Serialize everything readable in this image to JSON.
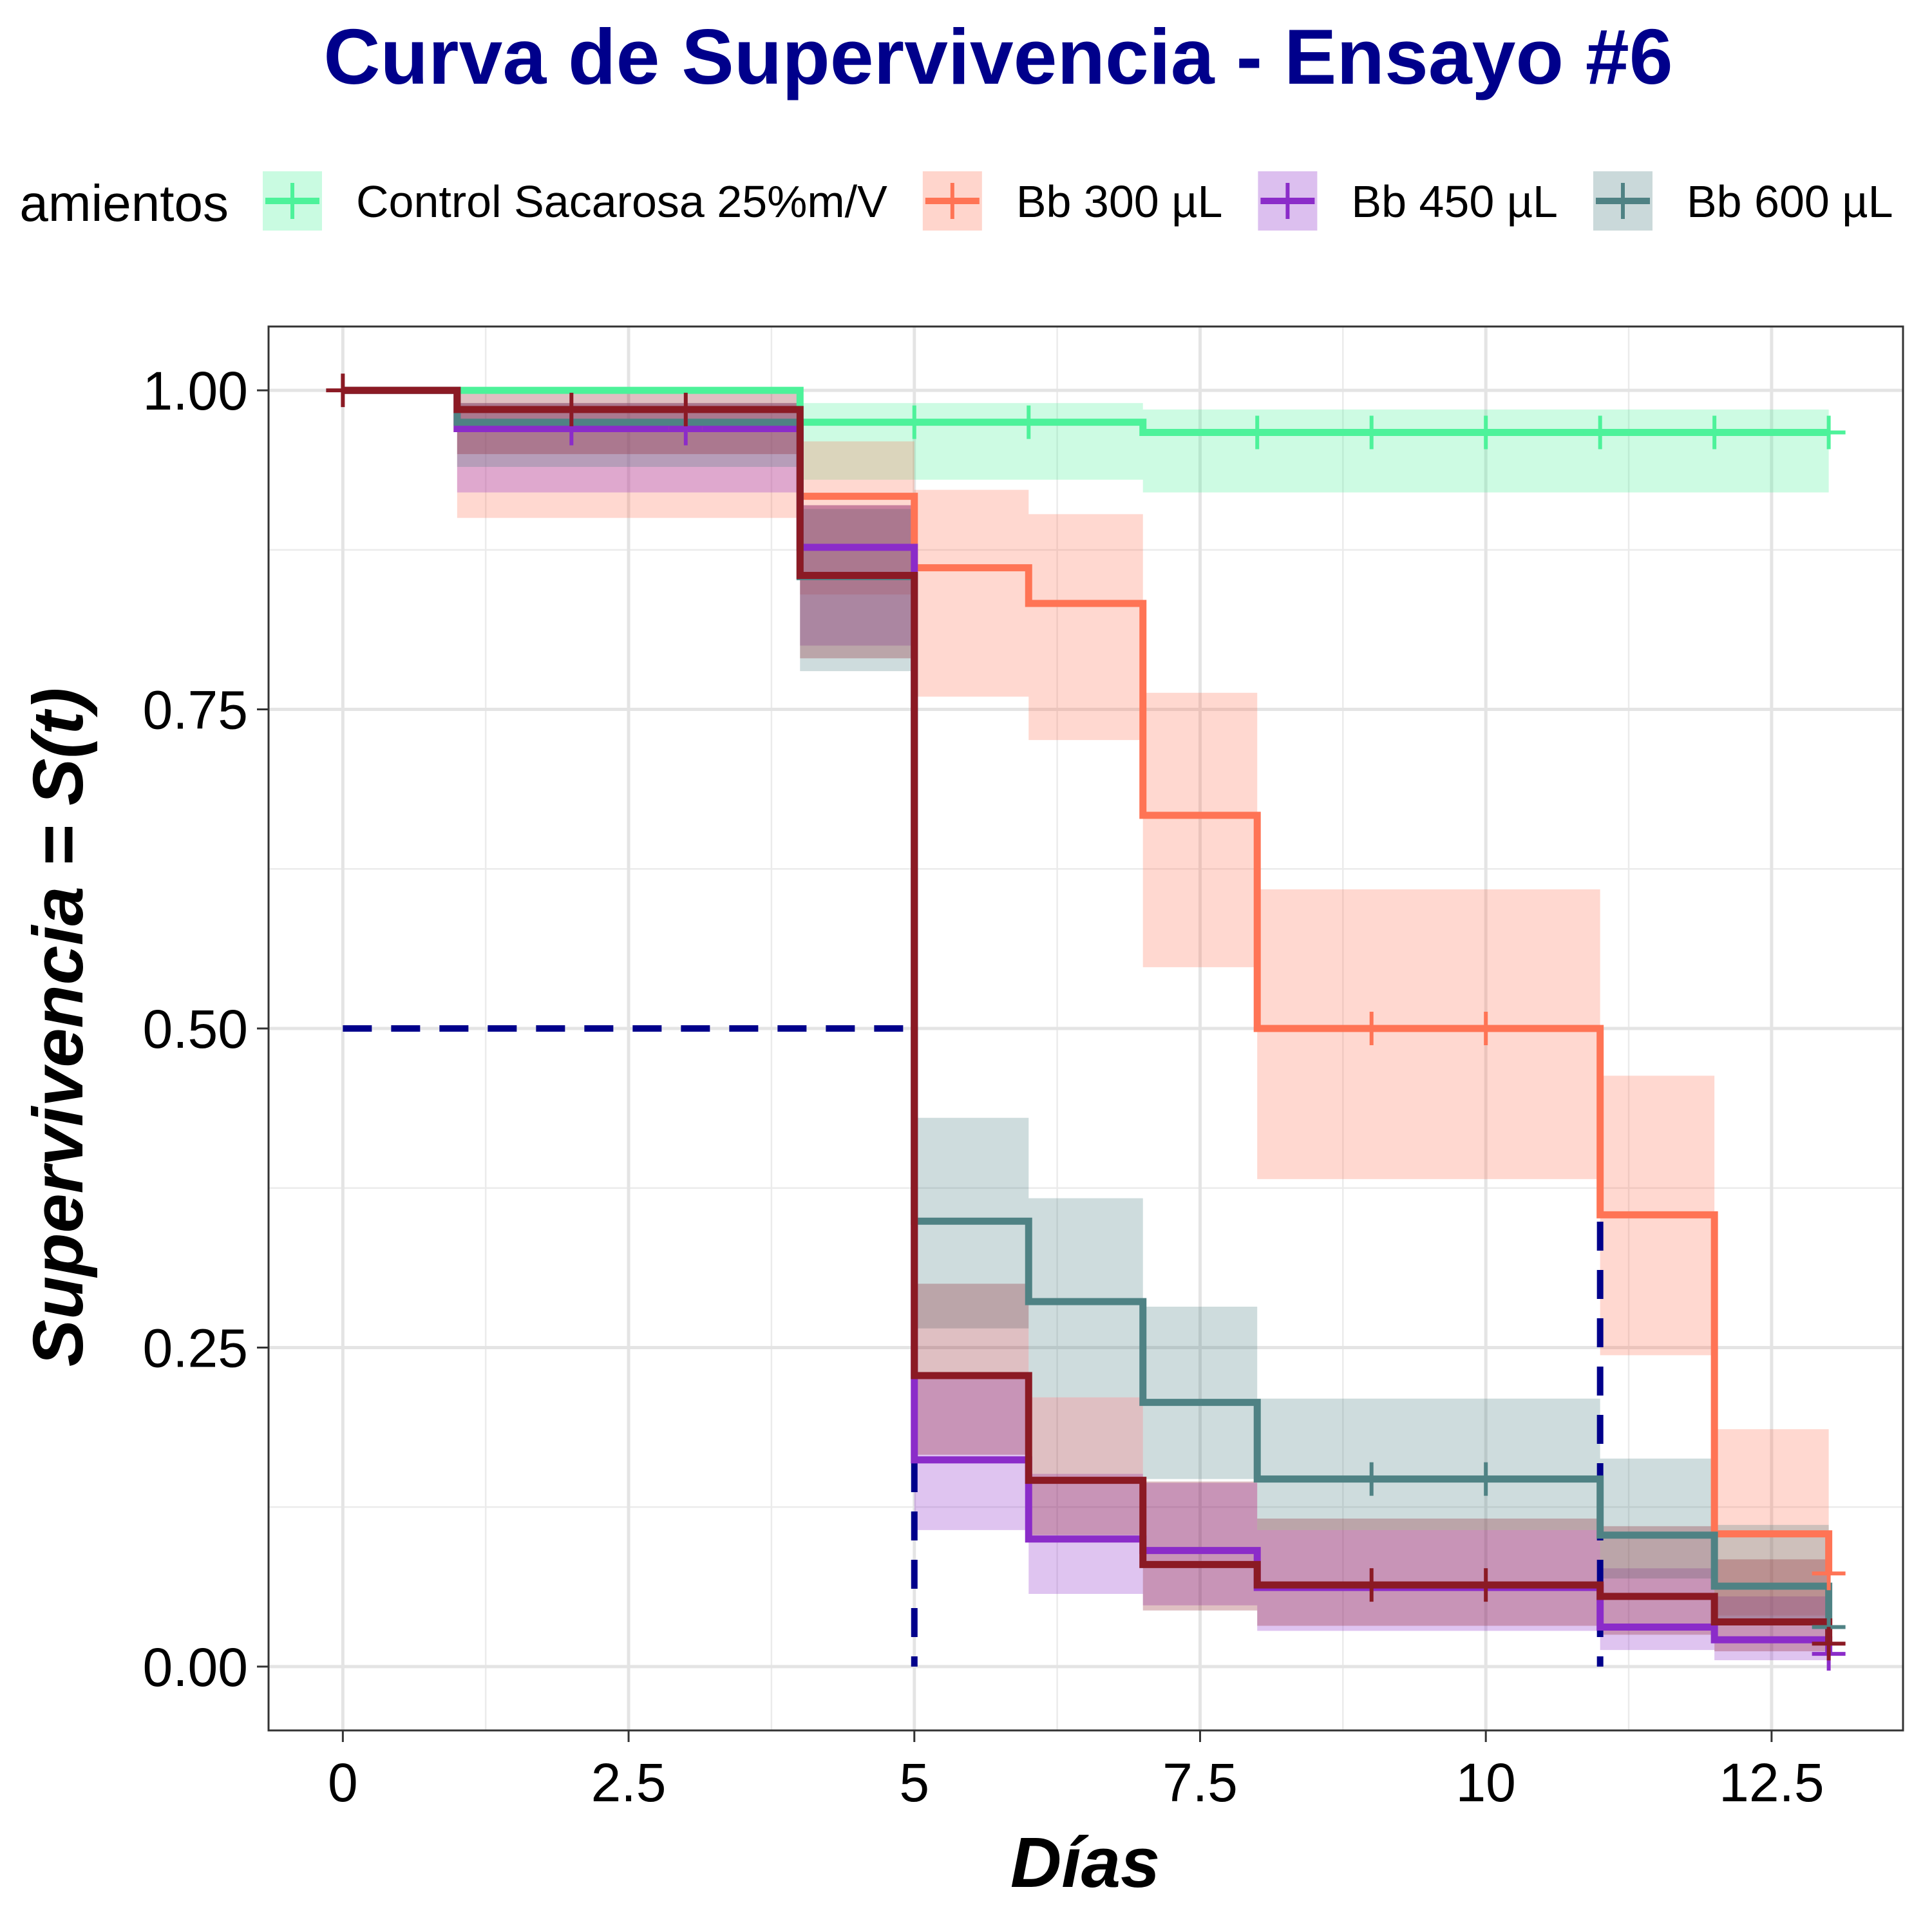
{
  "chart_data": {
    "type": "line",
    "subtype": "kaplan-meier step curves with confidence bands",
    "title": "Curva de Supervivencia - Ensayo #6",
    "xlabel": "Días",
    "ylabel": "Supervivencia = S(t)",
    "xlim": [
      -0.65,
      13.65
    ],
    "ylim": [
      -0.05,
      1.05
    ],
    "x_ticks": [
      0,
      2.5,
      5,
      7.5,
      10,
      12.5
    ],
    "x_tick_labels": [
      "0",
      "2.5",
      "5",
      "7.5",
      "10",
      "12.5"
    ],
    "y_ticks": [
      0,
      0.25,
      0.5,
      0.75,
      1.0
    ],
    "y_tick_labels": [
      "0.00",
      "0.25",
      "0.50",
      "0.75",
      "1.00"
    ],
    "grid": true,
    "legend": {
      "title": "Tratamientos",
      "title_visible": "amientos",
      "position": "top"
    },
    "series": [
      {
        "name": "Control Sacarosa 25%m/V",
        "color": "#4DF29A",
        "times": [
          0,
          4,
          7,
          13
        ],
        "surv": [
          1.0,
          0.975,
          0.967,
          0.967
        ],
        "lower": [
          1.0,
          0.93,
          0.92,
          0.92
        ],
        "upper": [
          1.0,
          0.99,
          0.985,
          0.985
        ],
        "censor_times": [
          5,
          6,
          8,
          9,
          10,
          11,
          12,
          13
        ]
      },
      {
        "name": "Bb 300 µL",
        "color": "#FF7455",
        "times": [
          0,
          1,
          4,
          5,
          6,
          7,
          8,
          11,
          12,
          13
        ],
        "surv": [
          1.0,
          0.97,
          0.917,
          0.861,
          0.833,
          0.667,
          0.5,
          0.354,
          0.104,
          0.073
        ],
        "lower": [
          1.0,
          0.9,
          0.84,
          0.76,
          0.726,
          0.548,
          0.382,
          0.244,
          0.04,
          0.04
        ],
        "upper": [
          1.0,
          0.99,
          0.96,
          0.922,
          0.903,
          0.763,
          0.609,
          0.463,
          0.186,
          0.186
        ],
        "censor_times": [
          3,
          9,
          10,
          13
        ]
      },
      {
        "name": "Bb 450 µL",
        "color": "#8B2CC9",
        "times": [
          0,
          1,
          4,
          5,
          6,
          7,
          8,
          11,
          12,
          13
        ],
        "surv": [
          1.0,
          0.97,
          0.877,
          0.162,
          0.1,
          0.091,
          0.062,
          0.031,
          0.021,
          0.01
        ],
        "lower": [
          1.0,
          0.92,
          0.8,
          0.107,
          0.057,
          0.048,
          0.028,
          0.013,
          0.005,
          0.005
        ],
        "upper": [
          1.0,
          0.99,
          0.91,
          0.229,
          0.151,
          0.144,
          0.107,
          0.077,
          0.055,
          0.055
        ],
        "censor_times": [
          2,
          3,
          13
        ]
      },
      {
        "name": "Bb 600 µL",
        "color": "#4F8284",
        "times": [
          0,
          1,
          4,
          5,
          6,
          7,
          8,
          11,
          12,
          13
        ],
        "surv": [
          1.0,
          0.975,
          0.854,
          0.349,
          0.286,
          0.207,
          0.147,
          0.103,
          0.063,
          0.031
        ],
        "lower": [
          1.0,
          0.94,
          0.78,
          0.265,
          0.211,
          0.147,
          0.107,
          0.069,
          0.035,
          0.012
        ],
        "upper": [
          1.0,
          0.99,
          0.907,
          0.43,
          0.367,
          0.282,
          0.21,
          0.163,
          0.111,
          0.082
        ],
        "censor_times": [
          9,
          10,
          13
        ]
      },
      {
        "color": "#8B1A24",
        "times": [
          0,
          1,
          4,
          5,
          6,
          7,
          8,
          11,
          12,
          13
        ],
        "surv": [
          1.0,
          0.985,
          0.855,
          0.228,
          0.146,
          0.08,
          0.064,
          0.055,
          0.035,
          0.018
        ],
        "lower": [
          1.0,
          0.95,
          0.79,
          0.166,
          0.103,
          0.044,
          0.032,
          0.025,
          0.012,
          0.005
        ],
        "upper": [
          1.0,
          1.0,
          0.91,
          0.3,
          0.211,
          0.145,
          0.116,
          0.11,
          0.084,
          0.06
        ],
        "censor_times": [
          0,
          2,
          3,
          9,
          10,
          13
        ]
      }
    ],
    "median_lines": [
      5,
      11
    ],
    "median_line_color": "#00008B"
  }
}
